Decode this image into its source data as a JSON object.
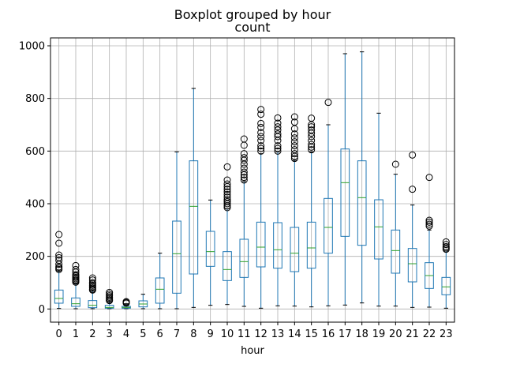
{
  "chart_data": {
    "type": "boxplot",
    "suptitle": "Boxplot grouped by hour",
    "title": "count",
    "xlabel": "hour",
    "ylabel": "",
    "ylim": [
      -50,
      1030
    ],
    "yticks": [
      0,
      200,
      400,
      600,
      800,
      1000
    ],
    "grid": true,
    "colors": {
      "box": "#1f77b4",
      "median": "#2ca02c",
      "grid": "#b0b0b0",
      "flier": "#000000"
    },
    "categories": [
      "0",
      "1",
      "2",
      "3",
      "4",
      "5",
      "6",
      "7",
      "8",
      "9",
      "10",
      "11",
      "12",
      "13",
      "14",
      "15",
      "16",
      "17",
      "18",
      "19",
      "20",
      "21",
      "22",
      "23"
    ],
    "boxes": [
      {
        "whislo": 2,
        "q1": 22,
        "med": 40,
        "q3": 72,
        "whishi": 145,
        "fliers": [
          150,
          155,
          160,
          170,
          185,
          195,
          205,
          250,
          283
        ]
      },
      {
        "whislo": 1,
        "q1": 10,
        "med": 20,
        "q3": 42,
        "whishi": 98,
        "fliers": [
          102,
          106,
          110,
          115,
          120,
          125,
          130,
          140,
          150,
          165
        ]
      },
      {
        "whislo": 1,
        "q1": 5,
        "med": 14,
        "q3": 32,
        "whishi": 70,
        "fliers": [
          72,
          75,
          80,
          85,
          90,
          95,
          100,
          110,
          118
        ]
      },
      {
        "whislo": 1,
        "q1": 3,
        "med": 6,
        "q3": 14,
        "whishi": 30,
        "fliers": [
          32,
          35,
          40,
          45,
          50,
          56,
          63
        ]
      },
      {
        "whislo": 1,
        "q1": 3,
        "med": 6,
        "q3": 10,
        "whishi": 20,
        "fliers": [
          22,
          25,
          28
        ]
      },
      {
        "whislo": 1,
        "q1": 8,
        "med": 19,
        "q3": 31,
        "whishi": 56,
        "fliers": []
      },
      {
        "whislo": 1,
        "q1": 22,
        "med": 75,
        "q3": 118,
        "whishi": 212,
        "fliers": []
      },
      {
        "whislo": 1,
        "q1": 60,
        "med": 210,
        "q3": 334,
        "whishi": 597,
        "fliers": []
      },
      {
        "whislo": 6,
        "q1": 133,
        "med": 390,
        "q3": 563,
        "whishi": 838,
        "fliers": []
      },
      {
        "whislo": 14,
        "q1": 162,
        "med": 218,
        "q3": 295,
        "whishi": 414,
        "fliers": []
      },
      {
        "whislo": 17,
        "q1": 108,
        "med": 150,
        "q3": 218,
        "whishi": 380,
        "fliers": [
          385,
          392,
          400,
          408,
          415,
          425,
          435,
          445,
          455,
          465,
          475,
          490,
          540
        ]
      },
      {
        "whislo": 10,
        "q1": 120,
        "med": 180,
        "q3": 265,
        "whishi": 484,
        "fliers": [
          490,
          500,
          510,
          520,
          535,
          550,
          565,
          575,
          590,
          622,
          646
        ]
      },
      {
        "whislo": 3,
        "q1": 160,
        "med": 235,
        "q3": 330,
        "whishi": 590,
        "fliers": [
          600,
          610,
          620,
          640,
          655,
          670,
          690,
          705,
          740,
          758
        ]
      },
      {
        "whislo": 12,
        "q1": 155,
        "med": 225,
        "q3": 328,
        "whishi": 597,
        "fliers": [
          600,
          610,
          620,
          640,
          655,
          665,
          680,
          692,
          706,
          726
        ]
      },
      {
        "whislo": 11,
        "q1": 142,
        "med": 212,
        "q3": 310,
        "whishi": 565,
        "fliers": [
          572,
          580,
          590,
          605,
          620,
          635,
          650,
          665,
          685,
          710,
          730
        ]
      },
      {
        "whislo": 8,
        "q1": 155,
        "med": 232,
        "q3": 330,
        "whishi": 597,
        "fliers": [
          605,
          615,
          625,
          640,
          655,
          668,
          680,
          692,
          700,
          725
        ]
      },
      {
        "whislo": 12,
        "q1": 212,
        "med": 310,
        "q3": 420,
        "whishi": 700,
        "fliers": [
          785
        ]
      },
      {
        "whislo": 15,
        "q1": 276,
        "med": 480,
        "q3": 608,
        "whishi": 970,
        "fliers": []
      },
      {
        "whislo": 23,
        "q1": 242,
        "med": 423,
        "q3": 563,
        "whishi": 977,
        "fliers": []
      },
      {
        "whislo": 11,
        "q1": 190,
        "med": 312,
        "q3": 415,
        "whishi": 744,
        "fliers": []
      },
      {
        "whislo": 11,
        "q1": 136,
        "med": 222,
        "q3": 300,
        "whishi": 512,
        "fliers": [
          550
        ]
      },
      {
        "whislo": 6,
        "q1": 103,
        "med": 172,
        "q3": 230,
        "whishi": 395,
        "fliers": [
          455,
          585
        ]
      },
      {
        "whislo": 7,
        "q1": 78,
        "med": 127,
        "q3": 176,
        "whishi": 300,
        "fliers": [
          315,
          322,
          330,
          337,
          500
        ]
      },
      {
        "whislo": 3,
        "q1": 54,
        "med": 84,
        "q3": 120,
        "whishi": 220,
        "fliers": [
          227,
          232,
          237,
          245,
          255
        ]
      }
    ]
  }
}
